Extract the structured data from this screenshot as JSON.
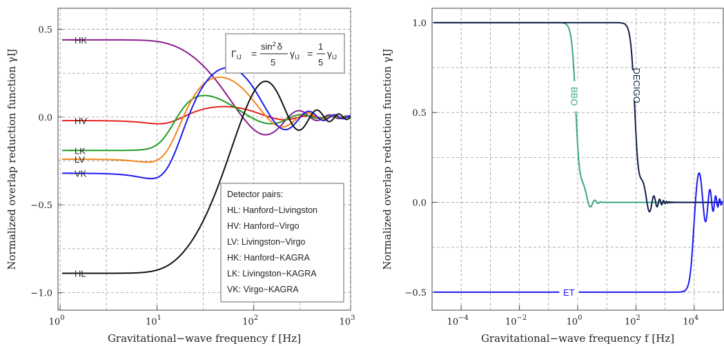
{
  "chart_data": [
    {
      "type": "line",
      "xscale": "log",
      "xlim": [
        0.95,
        1000
      ],
      "ylim": [
        -1.1,
        0.62
      ],
      "xlabel": "Gravitational−wave frequency f [Hz]",
      "ylabel": "Normalized overlap reduction function γIJ",
      "xticks": [
        {
          "v": 1,
          "b": "10",
          "e": "0"
        },
        {
          "v": 10,
          "b": "10",
          "e": "1"
        },
        {
          "v": 100,
          "b": "10",
          "e": "2"
        },
        {
          "v": 1000,
          "b": "10",
          "e": "3"
        }
      ],
      "yticks": [
        {
          "v": 0.5,
          "label": "0.5"
        },
        {
          "v": 0.0,
          "label": "0.0"
        },
        {
          "v": -0.5,
          "label": "−0.5"
        },
        {
          "v": -1.0,
          "label": "−1.0"
        }
      ],
      "formula": {
        "lhs": "Γ",
        "lhs_sub": "IJ",
        "eq": "=",
        "num1": "sin",
        "sup": "2",
        "delta": "δ",
        "den1": "5",
        "gamma": "γ",
        "sub": "IJ",
        "num2": "1",
        "den2": "5"
      },
      "legend_title": "Detector pairs:",
      "legend_entries": [
        "HL: Hanford−Livingston",
        "HV: Hanford−Virgo",
        "LV: Livingston−Virgo",
        "HK: Hanford−KAGRA",
        "LK: Livingston−KAGRA",
        "VK: Virgo−KAGRA"
      ],
      "series": [
        {
          "name": "HK",
          "color": "#8a1c8f",
          "y0": 0.44,
          "amp": 0.44,
          "phase": 0.0,
          "label_y": 0.44
        },
        {
          "name": "HV",
          "color": "#e82020",
          "y0": -0.02,
          "amp": -0.11,
          "phase": 1.7,
          "label_y": -0.02
        },
        {
          "name": "LK",
          "color": "#1e9e1e",
          "y0": -0.19,
          "amp": -0.19,
          "phase": 2.8,
          "label_y": -0.19
        },
        {
          "name": "LV",
          "color": "#f2841a",
          "y0": -0.24,
          "amp": -0.39,
          "phase": 1.9,
          "label_y": -0.24
        },
        {
          "name": "VK",
          "color": "#1a1aee",
          "y0": -0.32,
          "amp": -0.55,
          "phase": 1.6,
          "label_y": -0.32
        },
        {
          "name": "HL",
          "color": "#111111",
          "y0": -0.89,
          "amp": -0.89,
          "phase": 0.0,
          "label_y": -0.89
        }
      ]
    },
    {
      "type": "line",
      "xscale": "log",
      "xlim": [
        1e-05,
        100000
      ],
      "ylim": [
        -0.6,
        1.08
      ],
      "xlabel": "Gravitational−wave frequency f [Hz]",
      "ylabel": "Normalized overlap reduction function γIJ",
      "xticks": [
        {
          "v": 0.0001,
          "b": "10",
          "e": "−4"
        },
        {
          "v": 0.01,
          "b": "10",
          "e": "−2"
        },
        {
          "v": 1,
          "b": "10",
          "e": "0"
        },
        {
          "v": 100,
          "b": "10",
          "e": "2"
        },
        {
          "v": 10000,
          "b": "10",
          "e": "4"
        }
      ],
      "yticks": [
        {
          "v": 1.0,
          "label": "1.0"
        },
        {
          "v": 0.5,
          "label": "0.5"
        },
        {
          "v": 0.0,
          "label": "0.0"
        },
        {
          "v": -0.5,
          "label": "−0.5"
        }
      ],
      "series": [
        {
          "name": "BBO",
          "color": "#3aa58a",
          "y0": 1.0,
          "fc": 0.9
        },
        {
          "name": "DECIGO",
          "color": "#13204a",
          "y0": 1.0,
          "fc": 95
        },
        {
          "name": "ET",
          "color": "#1a1aee",
          "y0": -0.5,
          "fc": 8000
        }
      ]
    }
  ]
}
